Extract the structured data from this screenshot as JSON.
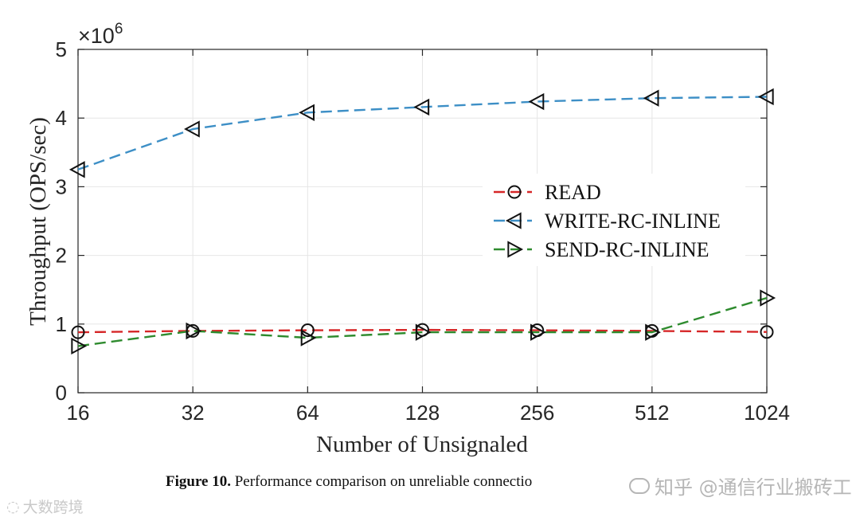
{
  "chart_data": {
    "type": "line",
    "x_scale": "log2",
    "categories": [
      16,
      32,
      64,
      128,
      256,
      512,
      1024
    ],
    "x_tick_labels": [
      "16",
      "32",
      "64",
      "128",
      "256",
      "512",
      "1024"
    ],
    "y_tick_labels": [
      "0",
      "1",
      "2",
      "3",
      "4",
      "5"
    ],
    "y_exponent_label": "×10",
    "y_exponent_power": "6",
    "xlabel": "Number of Unsignaled",
    "ylabel": "Throughput (OPS/sec)",
    "xlim": [
      16,
      1024
    ],
    "ylim": [
      0,
      5000000
    ],
    "grid": true,
    "legend_position": "center-right",
    "series": [
      {
        "name": "READ",
        "color": "#d62728",
        "marker": "circle",
        "values": [
          880000,
          900000,
          910000,
          915000,
          910000,
          900000,
          885000
        ]
      },
      {
        "name": "WRITE-RC-INLINE",
        "color": "#3d8fc6",
        "marker": "triangle-left",
        "values": [
          3250000,
          3840000,
          4080000,
          4160000,
          4240000,
          4290000,
          4310000
        ]
      },
      {
        "name": "SEND-RC-INLINE",
        "color": "#2e8b2e",
        "marker": "triangle-right",
        "values": [
          680000,
          900000,
          800000,
          880000,
          880000,
          880000,
          1380000
        ]
      }
    ]
  },
  "caption": {
    "figure_label": "Figure 10.",
    "text": " Performance comparison on unreliable connectio"
  },
  "watermark_left": "大数跨境",
  "watermark_right": "知乎 @通信行业搬砖工"
}
